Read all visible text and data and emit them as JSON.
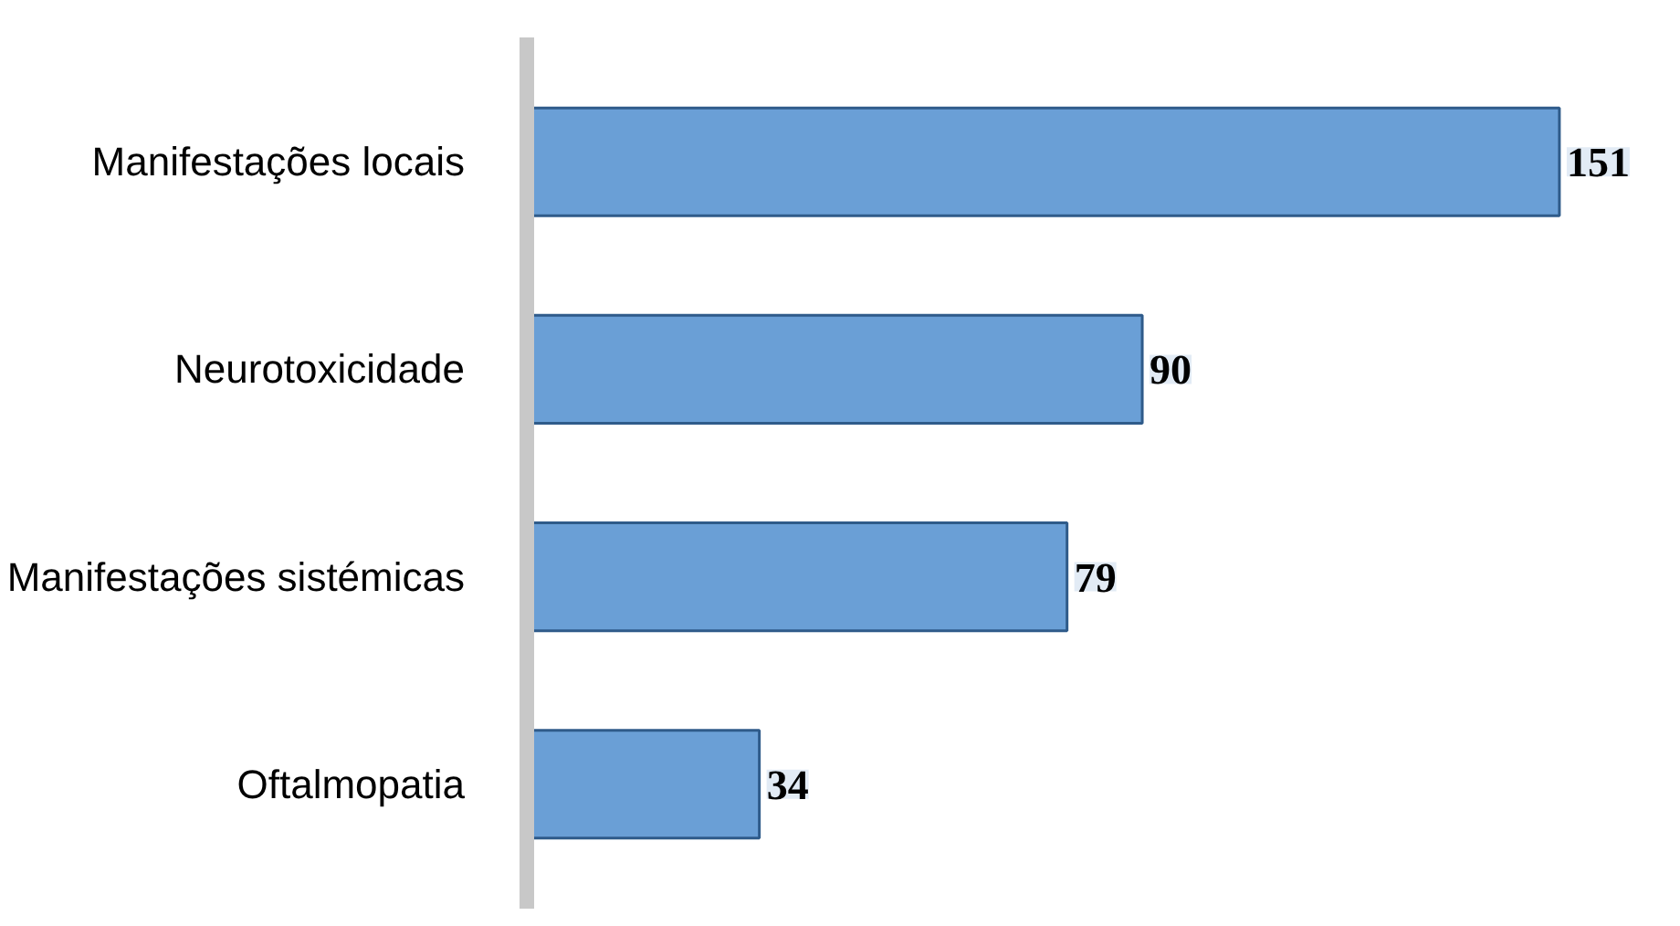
{
  "chart_data": {
    "type": "bar",
    "orientation": "horizontal",
    "categories": [
      "Manifestações locais",
      "Neurotoxicidade",
      "Manifestações sistémicas",
      "Oftalmopatia"
    ],
    "values": [
      151,
      90,
      79,
      34
    ],
    "color": "#6a9fd6",
    "data_labels": true
  }
}
